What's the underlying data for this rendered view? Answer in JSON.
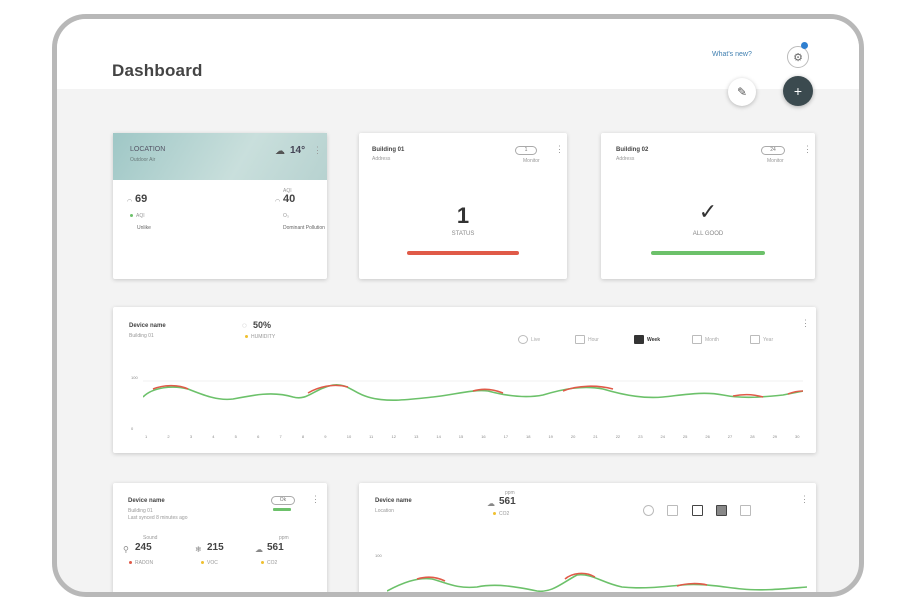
{
  "header": {
    "title": "Dashboard",
    "whats_new": "What's new?"
  },
  "weather_card": {
    "location": "LOCATION",
    "sublabel": "Outdoor Air",
    "temperature": "14°",
    "metric1": {
      "value": "69",
      "label": "AQI",
      "status": "Unlike"
    },
    "metric2": {
      "value": "40",
      "label": "O₃",
      "status": "Dominant Pollution"
    },
    "metric2_caption": "AQI"
  },
  "building1": {
    "name": "Building 01",
    "subtitle": "Address",
    "pill": "1",
    "mode": "Monitor",
    "count": "1",
    "status": "STATUS",
    "status_color": "#e05a48"
  },
  "building2": {
    "name": "Building 02",
    "subtitle": "Address",
    "pill": "24",
    "mode": "Monitor",
    "status": "ALL GOOD",
    "status_color": "#6cc16a"
  },
  "device_chart": {
    "name": "Device name",
    "subtitle": "Building 01",
    "reading": "50%",
    "reading_label": "HUMIDITY",
    "ranges": [
      "Live",
      "Hour",
      "Week",
      "Month",
      "Year"
    ],
    "active_range": "Week",
    "y_top": "100",
    "y_bottom": "0",
    "x_ticks": [
      "1",
      "2",
      "3",
      "4",
      "5",
      "6",
      "7",
      "8",
      "9",
      "10",
      "11",
      "12",
      "13",
      "14",
      "15",
      "16",
      "17",
      "18",
      "19",
      "20",
      "21",
      "22",
      "23",
      "24",
      "25",
      "26",
      "27",
      "28",
      "29",
      "30"
    ]
  },
  "device_small": {
    "name": "Device name",
    "subtitle": "Building 01",
    "updated": "Last synced 8 minutes ago",
    "toggle": "Ok",
    "metrics": [
      {
        "value": "245",
        "label": "RADON",
        "cap": "Sound"
      },
      {
        "value": "215",
        "label": "VOC",
        "cap": ""
      },
      {
        "value": "561",
        "label": "CO2",
        "cap": "ppm"
      }
    ]
  },
  "device_chart2": {
    "name": "Device name",
    "subtitle": "Location",
    "reading": "561",
    "reading_label": "CO2",
    "reading_cap": "ppm",
    "y_top": "100"
  },
  "colors": {
    "good": "#6cc16a",
    "bad": "#e05a48",
    "accent": "#3f7fb0",
    "fab_dark": "#3b4a4f"
  }
}
